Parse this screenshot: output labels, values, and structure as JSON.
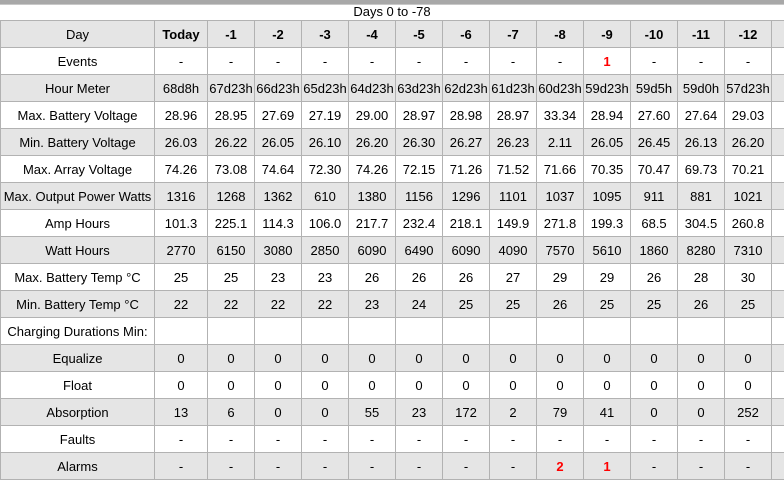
{
  "title": "Days 0 to -78",
  "colors": {
    "stripe_gray": "#e5e5e5",
    "grid_border": "#b2b2b2",
    "top_bar": "#a8a8a8",
    "alert_red": "#ff0000",
    "text": "#000000"
  },
  "table": {
    "corner_label": "Day",
    "columns": [
      "Today",
      "-1",
      "-2",
      "-3",
      "-4",
      "-5",
      "-6",
      "-7",
      "-8",
      "-9",
      "-10",
      "-11",
      "-12"
    ],
    "rows": [
      {
        "label": "Events",
        "values": [
          "-",
          "-",
          "-",
          "-",
          "-",
          "-",
          "-",
          "-",
          "-",
          "1",
          "-",
          "-",
          "-"
        ],
        "red": [
          9
        ]
      },
      {
        "label": "Hour Meter",
        "values": [
          "68d8h",
          "67d23h",
          "66d23h",
          "65d23h",
          "64d23h",
          "63d23h",
          "62d23h",
          "61d23h",
          "60d23h",
          "59d23h",
          "59d5h",
          "59d0h",
          "57d23h"
        ]
      },
      {
        "label": "Max. Battery Voltage",
        "values": [
          "28.96",
          "28.95",
          "27.69",
          "27.19",
          "29.00",
          "28.97",
          "28.98",
          "28.97",
          "33.34",
          "28.94",
          "27.60",
          "27.64",
          "29.03"
        ]
      },
      {
        "label": "Min. Battery Voltage",
        "values": [
          "26.03",
          "26.22",
          "26.05",
          "26.10",
          "26.20",
          "26.30",
          "26.27",
          "26.23",
          "2.11",
          "26.05",
          "26.45",
          "26.13",
          "26.20"
        ]
      },
      {
        "label": "Max. Array Voltage",
        "values": [
          "74.26",
          "73.08",
          "74.64",
          "72.30",
          "74.26",
          "72.15",
          "71.26",
          "71.52",
          "71.66",
          "70.35",
          "70.47",
          "69.73",
          "70.21"
        ]
      },
      {
        "label": "Max. Output Power Watts",
        "values": [
          "1316",
          "1268",
          "1362",
          "610",
          "1380",
          "1156",
          "1296",
          "1101",
          "1037",
          "1095",
          "911",
          "881",
          "1021"
        ]
      },
      {
        "label": "Amp Hours",
        "values": [
          "101.3",
          "225.1",
          "114.3",
          "106.0",
          "217.7",
          "232.4",
          "218.1",
          "149.9",
          "271.8",
          "199.3",
          "68.5",
          "304.5",
          "260.8"
        ]
      },
      {
        "label": "Watt Hours",
        "values": [
          "2770",
          "6150",
          "3080",
          "2850",
          "6090",
          "6490",
          "6090",
          "4090",
          "7570",
          "5610",
          "1860",
          "8280",
          "7310"
        ]
      },
      {
        "label": "Max. Battery Temp °C",
        "values": [
          "25",
          "25",
          "23",
          "23",
          "26",
          "26",
          "26",
          "27",
          "29",
          "29",
          "26",
          "28",
          "30"
        ]
      },
      {
        "label": "Min. Battery Temp °C",
        "values": [
          "22",
          "22",
          "22",
          "22",
          "23",
          "24",
          "25",
          "25",
          "26",
          "25",
          "25",
          "26",
          "25"
        ]
      },
      {
        "label": "Charging Durations Min:",
        "values": [
          "",
          "",
          "",
          "",
          "",
          "",
          "",
          "",
          "",
          "",
          "",
          "",
          ""
        ]
      },
      {
        "label": "Equalize",
        "align": "right",
        "values": [
          "0",
          "0",
          "0",
          "0",
          "0",
          "0",
          "0",
          "0",
          "0",
          "0",
          "0",
          "0",
          "0"
        ]
      },
      {
        "label": "Float",
        "align": "right",
        "values": [
          "0",
          "0",
          "0",
          "0",
          "0",
          "0",
          "0",
          "0",
          "0",
          "0",
          "0",
          "0",
          "0"
        ]
      },
      {
        "label": "Absorption",
        "align": "right",
        "values": [
          "13",
          "6",
          "0",
          "0",
          "55",
          "23",
          "172",
          "2",
          "79",
          "41",
          "0",
          "0",
          "252"
        ]
      },
      {
        "label": "Faults",
        "values": [
          "-",
          "-",
          "-",
          "-",
          "-",
          "-",
          "-",
          "-",
          "-",
          "-",
          "-",
          "-",
          "-"
        ]
      },
      {
        "label": "Alarms",
        "values": [
          "-",
          "-",
          "-",
          "-",
          "-",
          "-",
          "-",
          "-",
          "2",
          "1",
          "-",
          "-",
          "-"
        ],
        "red": [
          8,
          9
        ]
      }
    ]
  }
}
